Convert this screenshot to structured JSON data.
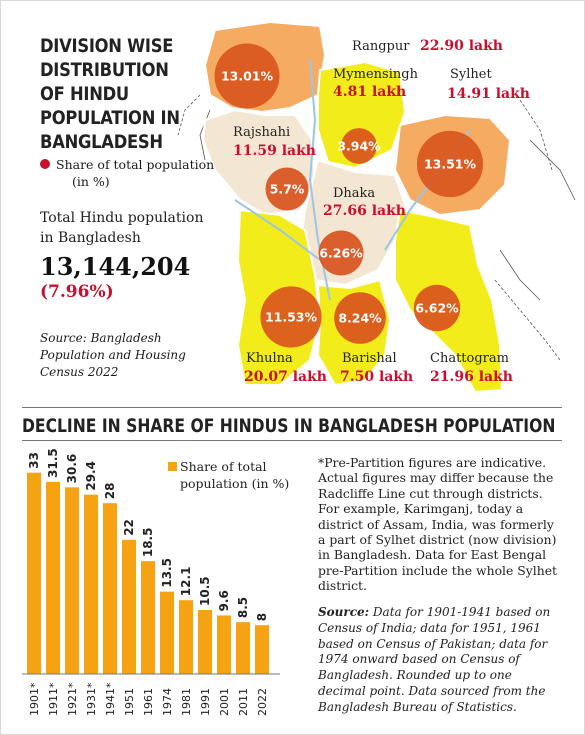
{
  "headline": "DIVISION WISE DISTRIBUTION OF HINDU POPULATION IN BANGLADESH",
  "legend": {
    "label": "Share of total population (in %)",
    "color": "#c8102e"
  },
  "total": {
    "label": "Total Hindu population in Bangladesh",
    "value": "13,144,204",
    "pct": "(7.96%)"
  },
  "map_source": "Source: Bangladesh Population and Housing Census 2022",
  "divisions": [
    {
      "name": "Rangpur",
      "population": "22.90 lakh",
      "share_label": "13.01%",
      "share": 13.01
    },
    {
      "name": "Mymensingh",
      "population": "4.81 lakh",
      "share_label": "3.94%",
      "share": 3.94
    },
    {
      "name": "Sylhet",
      "population": "14.91 lakh",
      "share_label": "13.51%",
      "share": 13.51
    },
    {
      "name": "Rajshahi",
      "population": "11.59 lakh",
      "share_label": "5.7%",
      "share": 5.7
    },
    {
      "name": "Dhaka",
      "population": "27.66 lakh",
      "share_label": "6.26%",
      "share": 6.26
    },
    {
      "name": "Khulna",
      "population": "20.07 lakh",
      "share_label": "11.53%",
      "share": 11.53
    },
    {
      "name": "Barishal",
      "population": "7.50 lakh",
      "share_label": "8.24%",
      "share": 8.24
    },
    {
      "name": "Chattogram",
      "population": "21.96 lakh",
      "share_label": "6.62%",
      "share": 6.62
    }
  ],
  "colors": {
    "bubble": "#d9541e",
    "bar": "#f5a313",
    "division_orange": "#f6ab62",
    "division_yellow": "#f3ec1b",
    "division_beige": "#f3e7d3"
  },
  "chart_title": "DECLINE IN SHARE OF HINDUS IN BANGLADESH POPULATION",
  "chart_data": {
    "type": "bar",
    "categories": [
      "1901*",
      "1911*",
      "1921*",
      "1931*",
      "1941*",
      "1951",
      "1961",
      "1974",
      "1981",
      "1991",
      "2001",
      "2011",
      "2022"
    ],
    "values": [
      33,
      31.5,
      30.6,
      29.4,
      28,
      22,
      18.5,
      13.5,
      12.1,
      10.5,
      9.6,
      8.5,
      8
    ],
    "value_labels": [
      "33",
      "31.5",
      "30.6",
      "29.4",
      "28",
      "22",
      "18.5",
      "13.5",
      "12.1",
      "10.5",
      "9.6",
      "8.5",
      "8"
    ],
    "legend": "Share of total population (in %)",
    "title": "DECLINE IN SHARE OF HINDUS IN BANGLADESH POPULATION"
  },
  "note": "*Pre-Partition figures are indicative. Actual figures may differ because the Radcliffe Line cut through districts. For example, Karimganj, today a district of Assam, India, was formerly a part of Sylhet district (now division) in Bangladesh. Data for East Bengal pre-Partition include the whole Sylhet district.",
  "note_source": {
    "label": "Source:",
    "text": "Data for 1901-1941 based on Census of India; data for 1951, 1961 based on Census of Pakistan; data for 1974 onward based on Census of Bangladesh. Rounded up to one decimal point. Data sourced from the Bangladesh Bureau of Statistics."
  }
}
